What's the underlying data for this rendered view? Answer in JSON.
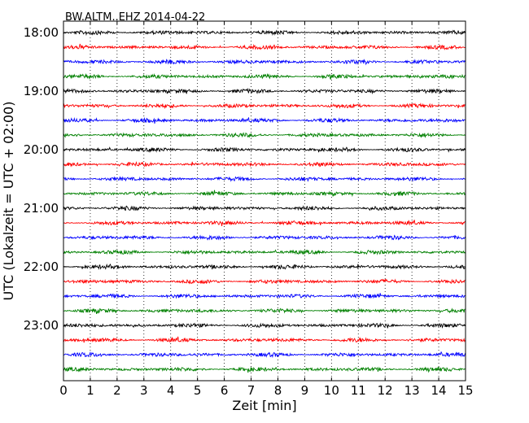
{
  "chart_data": {
    "type": "line",
    "title": "BW.ALTM..EHZ 2014-04-22",
    "xlabel": "Zeit  [min]",
    "ylabel": "UTC (Lokalzeit = UTC + 02:00)",
    "xlim": [
      0,
      15
    ],
    "x_ticks": [
      "0",
      "1",
      "2",
      "3",
      "4",
      "5",
      "6",
      "7",
      "8",
      "9",
      "10",
      "11",
      "12",
      "13",
      "14",
      "15"
    ],
    "y_ticks": [
      "18:00",
      "19:00",
      "20:00",
      "21:00",
      "22:00",
      "23:00"
    ],
    "grid": "vertical dotted",
    "trace_colors": [
      "#000000",
      "#ff0000",
      "#0000ff",
      "#008000"
    ],
    "series": [
      {
        "start": "18:00",
        "color": "#000000"
      },
      {
        "start": "18:15",
        "color": "#ff0000"
      },
      {
        "start": "18:30",
        "color": "#0000ff"
      },
      {
        "start": "18:45",
        "color": "#008000"
      },
      {
        "start": "19:00",
        "color": "#000000"
      },
      {
        "start": "19:15",
        "color": "#ff0000"
      },
      {
        "start": "19:30",
        "color": "#0000ff"
      },
      {
        "start": "19:45",
        "color": "#008000"
      },
      {
        "start": "20:00",
        "color": "#000000"
      },
      {
        "start": "20:15",
        "color": "#ff0000"
      },
      {
        "start": "20:30",
        "color": "#0000ff"
      },
      {
        "start": "20:45",
        "color": "#008000"
      },
      {
        "start": "21:00",
        "color": "#000000"
      },
      {
        "start": "21:15",
        "color": "#ff0000"
      },
      {
        "start": "21:30",
        "color": "#0000ff"
      },
      {
        "start": "21:45",
        "color": "#008000"
      },
      {
        "start": "22:00",
        "color": "#000000"
      },
      {
        "start": "22:15",
        "color": "#ff0000"
      },
      {
        "start": "22:30",
        "color": "#0000ff"
      },
      {
        "start": "22:45",
        "color": "#008000"
      },
      {
        "start": "23:00",
        "color": "#000000"
      },
      {
        "start": "23:15",
        "color": "#ff0000"
      },
      {
        "start": "23:30",
        "color": "#0000ff"
      },
      {
        "start": "23:45",
        "color": "#008000"
      }
    ]
  }
}
